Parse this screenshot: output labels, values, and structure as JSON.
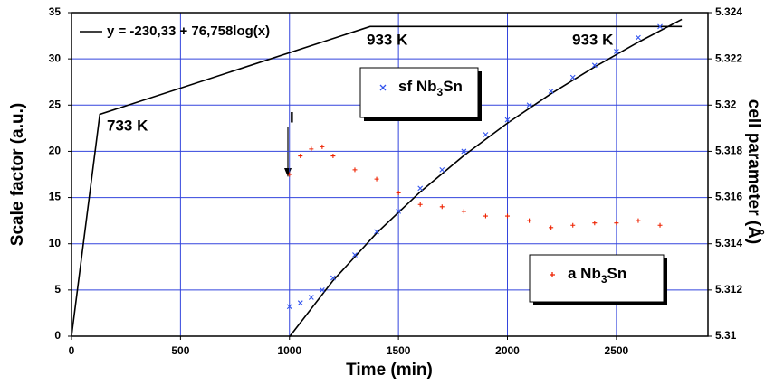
{
  "chart_data": {
    "type": "line",
    "xlabel": "Time (min)",
    "ylabel": "Scale factor (a.u.)",
    "y2label": "cell parameter (Å)",
    "xlim": [
      0,
      2920
    ],
    "xticks": [
      0,
      500,
      1000,
      1500,
      2000,
      2500
    ],
    "ylim": [
      0,
      35
    ],
    "yticks": [
      0,
      5,
      10,
      15,
      20,
      25,
      30,
      35
    ],
    "y2lim": [
      5.31,
      5.324
    ],
    "y2ticks": [
      5.31,
      5.312,
      5.314,
      5.316,
      5.318,
      5.32,
      5.322,
      5.324
    ],
    "grid": true,
    "annotations": [
      "733 K",
      "933 K",
      "933 K",
      "I"
    ],
    "series": [
      {
        "color": "#000000",
        "line": true,
        "x": [
          0,
          130,
          1370,
          2800
        ],
        "values": [
          0,
          24,
          33.5,
          33.5
        ]
      },
      {
        "name": "y = -230,33 + 76,758log(x)",
        "color": "#000000",
        "line": true,
        "x": [
          1000,
          1200,
          1400,
          1600,
          1800,
          2000,
          2200,
          2400,
          2600,
          2800
        ],
        "values": [
          -0.06,
          6.02,
          11.16,
          15.61,
          19.54,
          23.05,
          26.23,
          29.13,
          31.8,
          34.27
        ]
      },
      {
        "name": "sf Nb3Sn",
        "color": "#3355ee",
        "marker": "x",
        "x": [
          1000,
          1050,
          1100,
          1150,
          1200,
          1300,
          1400,
          1500,
          1600,
          1700,
          1800,
          1900,
          2000,
          2100,
          2200,
          2300,
          2400,
          2500,
          2600,
          2700
        ],
        "values": [
          3.2,
          3.6,
          4.2,
          5,
          6.3,
          8.8,
          11.3,
          13.5,
          16,
          18,
          20,
          21.8,
          23.4,
          25,
          26.5,
          28,
          29.3,
          30.8,
          32.3,
          33.5
        ]
      },
      {
        "name": "a Nb3Sn",
        "color": "#ee2200",
        "marker": "+",
        "axis": "y2",
        "x": [
          1000,
          1050,
          1100,
          1150,
          1200,
          1300,
          1400,
          1500,
          1600,
          1700,
          1800,
          1900,
          2000,
          2100,
          2200,
          2300,
          2400,
          2500,
          2600,
          2700
        ],
        "values": [
          5.317,
          5.3178,
          5.3181,
          5.3182,
          5.3178,
          5.3172,
          5.3168,
          5.3162,
          5.3157,
          5.3156,
          5.3154,
          5.3152,
          5.3152,
          5.315,
          5.3147,
          5.3148,
          5.3149,
          5.3149,
          5.315,
          5.3148
        ]
      }
    ]
  }
}
